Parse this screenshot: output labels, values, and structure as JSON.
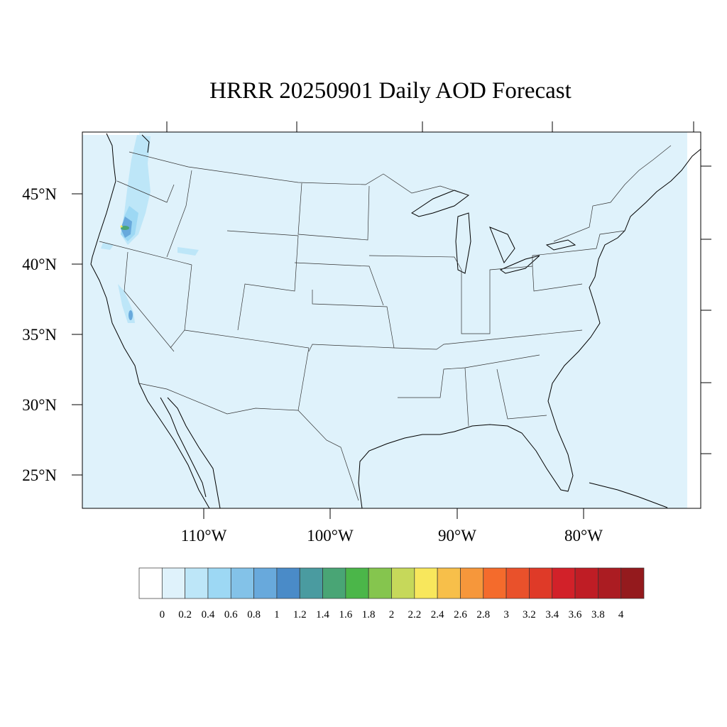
{
  "title": "HRRR 20250901 Daily AOD Forecast",
  "map": {
    "region": "Contiguous United States",
    "background_color": "#dff2fb",
    "lat_labels": [
      "45°N",
      "40°N",
      "35°N",
      "30°N",
      "25°N"
    ],
    "lon_labels": [
      "110°W",
      "100°W",
      "90°W",
      "80°W"
    ],
    "features": [
      {
        "name": "Oregon smoke plume",
        "max_level": "1.6-1.8"
      },
      {
        "name": "Central California plume",
        "max_level": "0.8-1"
      }
    ]
  },
  "colorbar": {
    "labels": [
      "0",
      "0.2",
      "0.4",
      "0.6",
      "0.8",
      "1",
      "1.2",
      "1.4",
      "1.6",
      "1.8",
      "2",
      "2.2",
      "2.4",
      "2.6",
      "2.8",
      "3",
      "3.2",
      "3.4",
      "3.6",
      "3.8",
      "4"
    ],
    "colors": [
      "#ffffff",
      "#dff2fb",
      "#bde6f8",
      "#9dd8f4",
      "#83c2e8",
      "#68a9dc",
      "#4a8bc8",
      "#4a9ba0",
      "#49a575",
      "#4bb649",
      "#85c54e",
      "#c6d85a",
      "#f8e75c",
      "#f7bf4a",
      "#f6973b",
      "#f46b2c",
      "#e9512b",
      "#df3a28",
      "#d22129",
      "#bf1d25",
      "#ab1c22",
      "#941a1d"
    ]
  }
}
